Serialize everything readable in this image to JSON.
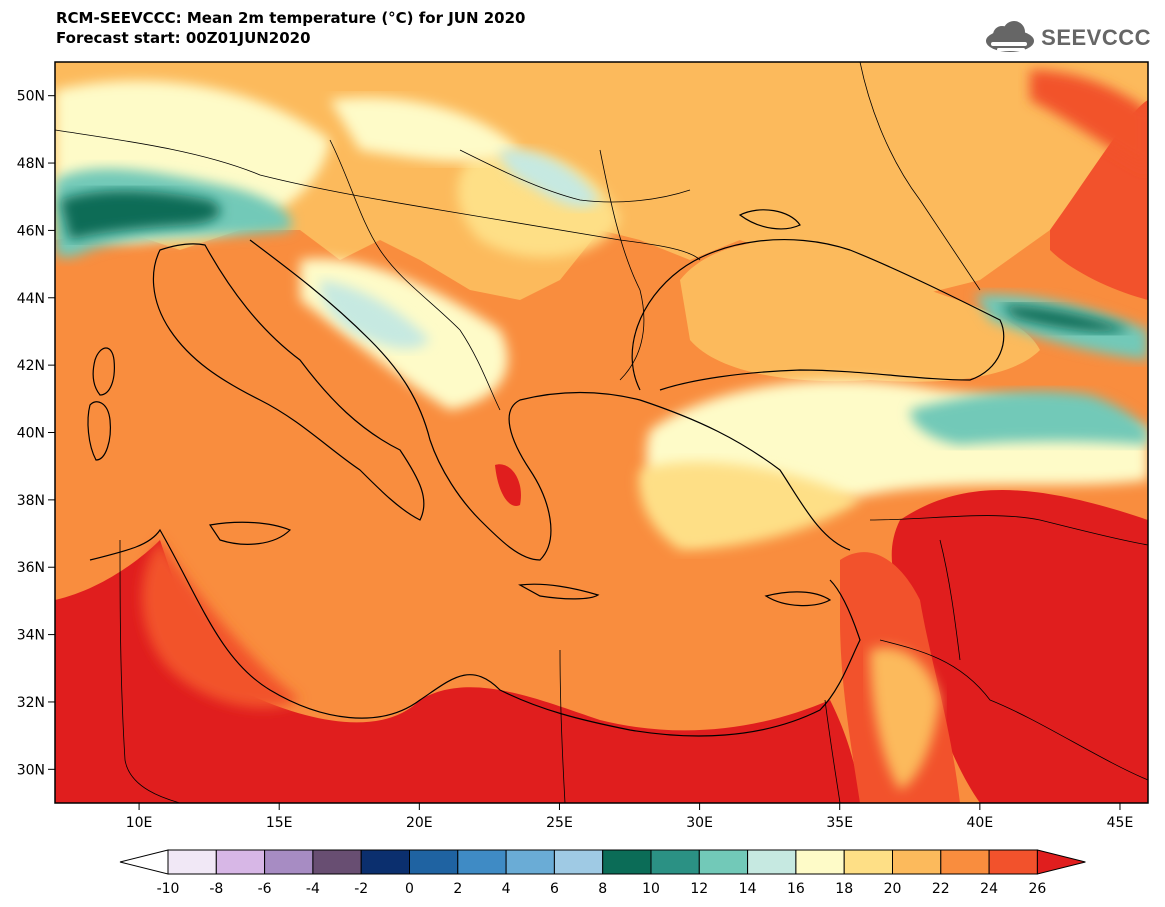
{
  "header": {
    "title": "RCM-SEEVCCC: Mean 2m temperature (°C) for JUN 2020",
    "subtitle": "Forecast start: 00Z01JUN2020"
  },
  "logo": {
    "text": "SEEVCCC",
    "icon": "cloud-icon"
  },
  "map": {
    "lon_range": [
      7,
      46
    ],
    "lat_range": [
      29,
      51
    ],
    "lat_ticks": [
      {
        "v": 50,
        "label": "50N"
      },
      {
        "v": 48,
        "label": "48N"
      },
      {
        "v": 46,
        "label": "46N"
      },
      {
        "v": 44,
        "label": "44N"
      },
      {
        "v": 42,
        "label": "42N"
      },
      {
        "v": 40,
        "label": "40N"
      },
      {
        "v": 38,
        "label": "38N"
      },
      {
        "v": 36,
        "label": "36N"
      },
      {
        "v": 34,
        "label": "34N"
      },
      {
        "v": 32,
        "label": "32N"
      },
      {
        "v": 30,
        "label": "30N"
      }
    ],
    "lon_ticks": [
      {
        "v": 10,
        "label": "10E"
      },
      {
        "v": 15,
        "label": "15E"
      },
      {
        "v": 20,
        "label": "20E"
      },
      {
        "v": 25,
        "label": "25E"
      },
      {
        "v": 30,
        "label": "30E"
      },
      {
        "v": 35,
        "label": "35E"
      },
      {
        "v": 40,
        "label": "40E"
      },
      {
        "v": 45,
        "label": "45E"
      }
    ]
  },
  "colorbar": {
    "labels": [
      "-10",
      "-8",
      "-6",
      "-4",
      "-2",
      "0",
      "2",
      "4",
      "6",
      "8",
      "10",
      "12",
      "14",
      "16",
      "18",
      "20",
      "22",
      "24",
      "26"
    ],
    "below_color": "#ffffff",
    "above_color": "#e01e1e",
    "colors": [
      "#f1e8f6",
      "#d7b7e6",
      "#a78cc3",
      "#684e72",
      "#0b2f6e",
      "#1f63a2",
      "#3f8bc5",
      "#6aacd6",
      "#9fcae4",
      "#0b6c57",
      "#2b9184",
      "#72c9b8",
      "#c6e9e1",
      "#fefbc8",
      "#fedf86",
      "#fcba5c",
      "#f98d3e",
      "#f2522c"
    ]
  },
  "palette": {
    "sea": "#f98d3e",
    "south": "#e01e1e",
    "warm": "#f2522c",
    "mid": "#fcba5c",
    "light": "#fedf86",
    "pale": "#fefbc8",
    "cold1": "#c6e9e1",
    "cold2": "#72c9b8",
    "cold3": "#2b9184",
    "cold4": "#0b6c57"
  }
}
